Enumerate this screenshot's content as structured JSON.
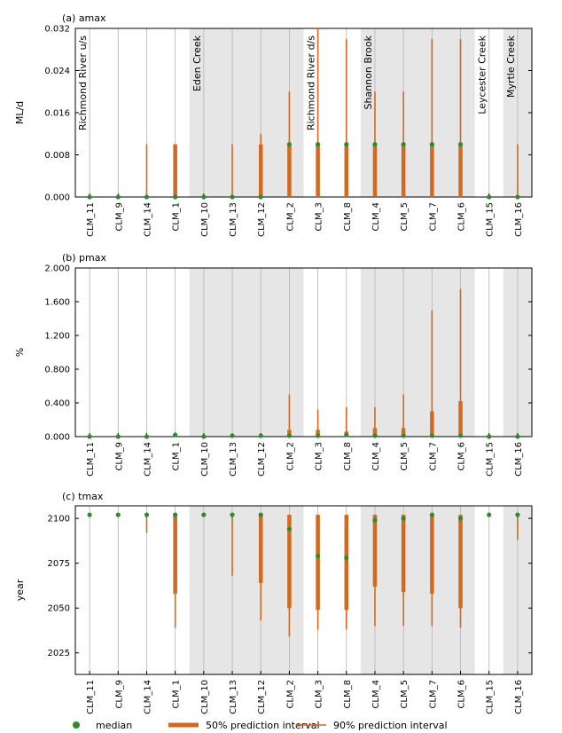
{
  "chart_data": {
    "type": "interval",
    "categories": [
      "CLM_11",
      "CLM_9",
      "CLM_14",
      "CLM_1",
      "CLM_10",
      "CLM_13",
      "CLM_12",
      "CLM_2",
      "CLM_3",
      "CLM_8",
      "CLM_4",
      "CLM_5",
      "CLM_7",
      "CLM_6",
      "CLM_15",
      "CLM_16"
    ],
    "groups": [
      {
        "name": "Richmond River u/s",
        "start": 0,
        "end": 3,
        "shaded": false
      },
      {
        "name": "Eden Creek",
        "start": 4,
        "end": 7,
        "shaded": true
      },
      {
        "name": "Richmond River d/s",
        "start": 8,
        "end": 9,
        "shaded": false
      },
      {
        "name": "Shannon Brook",
        "start": 10,
        "end": 13,
        "shaded": true
      },
      {
        "name": "Leycester Creek",
        "start": 14,
        "end": 14,
        "shaded": false
      },
      {
        "name": "Myrtle Creek",
        "start": 15,
        "end": 15,
        "shaded": true
      }
    ],
    "colors": {
      "median": "#2e8b2e",
      "interval": "#d2691e",
      "shade": "#e6e6e6",
      "gridline": "#b4b4b4"
    },
    "legend": {
      "median": "median",
      "p50": "50% prediction interval",
      "p90": "90% prediction interval"
    },
    "panels": [
      {
        "title": "(a) amax",
        "ylabel": "ML/d",
        "ylim": [
          0,
          0.032
        ],
        "yticks": [
          0,
          0.008,
          0.016,
          0.024,
          0.032
        ],
        "ytick_labels": [
          "0.000",
          "0.008",
          "0.016",
          "0.024",
          "0.032"
        ],
        "show_group_labels": true,
        "median": [
          0,
          0,
          0,
          0,
          0,
          0,
          0,
          0.01,
          0.01,
          0.01,
          0.01,
          0.01,
          0.01,
          0.01,
          0,
          0
        ],
        "p50_low": [
          0,
          0,
          0,
          0,
          0,
          0,
          0,
          0,
          0,
          0,
          0,
          0,
          0,
          0,
          0,
          0
        ],
        "p50_high": [
          0,
          0,
          0,
          0.01,
          0,
          0,
          0.01,
          0.01,
          0.01,
          0.01,
          0.01,
          0.01,
          0.01,
          0.01,
          0,
          0
        ],
        "p90_low": [
          0,
          0,
          0,
          0,
          0,
          0,
          0,
          0,
          0,
          0,
          0,
          0,
          0,
          0,
          0,
          0
        ],
        "p90_high": [
          0,
          0,
          0.01,
          0.01,
          0,
          0.01,
          0.012,
          0.02,
          0.032,
          0.03,
          0.02,
          0.02,
          0.03,
          0.03,
          0,
          0.01
        ]
      },
      {
        "title": "(b) pmax",
        "ylabel": "%",
        "ylim": [
          0,
          2.0
        ],
        "yticks": [
          0,
          0.4,
          0.8,
          1.2,
          1.6,
          2.0
        ],
        "ytick_labels": [
          "0.000",
          "0.400",
          "0.800",
          "1.200",
          "1.600",
          "2.000"
        ],
        "show_group_labels": false,
        "median": [
          0,
          0,
          0,
          0.02,
          0,
          0.01,
          0.01,
          0.01,
          0.01,
          0.02,
          0.01,
          0.01,
          0.01,
          0.01,
          0,
          0
        ],
        "p50_low": [
          0,
          0,
          0,
          0,
          0,
          0,
          0,
          0,
          0,
          0,
          0,
          0,
          0,
          0,
          0,
          0
        ],
        "p50_high": [
          0,
          0,
          0,
          0.03,
          0,
          0.01,
          0.01,
          0.08,
          0.08,
          0.06,
          0.1,
          0.1,
          0.3,
          0.42,
          0,
          0
        ],
        "p90_low": [
          0,
          0,
          0,
          0,
          0,
          0,
          0,
          0,
          0,
          0,
          0,
          0,
          0,
          0,
          0,
          0
        ],
        "p90_high": [
          0,
          0.01,
          0,
          0.05,
          0,
          0.02,
          0.03,
          0.5,
          0.32,
          0.35,
          0.35,
          0.5,
          1.5,
          1.75,
          0,
          0
        ]
      },
      {
        "title": "(c) tmax",
        "ylabel": "year",
        "ylim": [
          2013,
          2107
        ],
        "yticks": [
          2025,
          2050,
          2075,
          2100
        ],
        "ytick_labels": [
          "2025",
          "2050",
          "2075",
          "2100"
        ],
        "show_group_labels": false,
        "median": [
          2102,
          2102,
          2102,
          2102,
          2102,
          2102,
          2102,
          2094,
          2079,
          2078,
          2099,
          2100,
          2102,
          2100,
          2102,
          2102
        ],
        "p50_low": [
          2102,
          2102,
          2102,
          2058,
          2102,
          2102,
          2064,
          2050,
          2049,
          2049,
          2062,
          2059,
          2058,
          2050,
          2102,
          2102
        ],
        "p50_high": [
          2102,
          2102,
          2102,
          2102,
          2102,
          2102,
          2102,
          2102,
          2102,
          2102,
          2102,
          2102,
          2102,
          2102,
          2102,
          2102
        ],
        "p90_low": [
          2102,
          2102,
          2092,
          2039,
          2102,
          2068,
          2043,
          2034,
          2038,
          2038,
          2040,
          2040,
          2040,
          2039,
          2102,
          2088
        ],
        "p90_high": [
          2102,
          2102,
          2102,
          2102,
          2102,
          2102,
          2102,
          2102,
          2102,
          2102,
          2102,
          2102,
          2102,
          2102,
          2102,
          2102
        ]
      }
    ]
  }
}
